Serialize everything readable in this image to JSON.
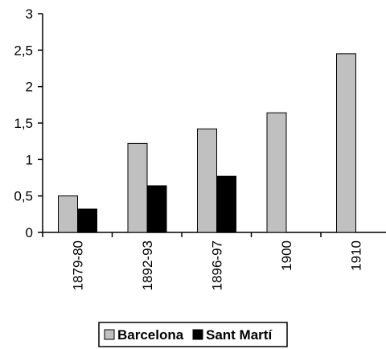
{
  "chart_data": {
    "type": "bar",
    "categories": [
      "1879-80",
      "1892-93",
      "1896-97",
      "1900",
      "1910"
    ],
    "series": [
      {
        "name": "Barcelona",
        "values": [
          0.5,
          1.22,
          1.42,
          1.64,
          2.45
        ],
        "color": "#c0c0c0"
      },
      {
        "name": "Sant Martí",
        "values": [
          0.32,
          0.64,
          0.77,
          null,
          null
        ],
        "color": "#000000"
      }
    ],
    "ylim": [
      0,
      3
    ],
    "yticks": [
      0,
      0.5,
      1,
      1.5,
      2,
      2.5,
      3
    ],
    "ytick_labels": [
      "0",
      "0,5",
      "1",
      "1,5",
      "2",
      "2,5",
      "3"
    ],
    "xtick_rotation": "vertical",
    "grid": false,
    "legend_position": "bottom",
    "title": "",
    "xlabel": "",
    "ylabel": ""
  }
}
